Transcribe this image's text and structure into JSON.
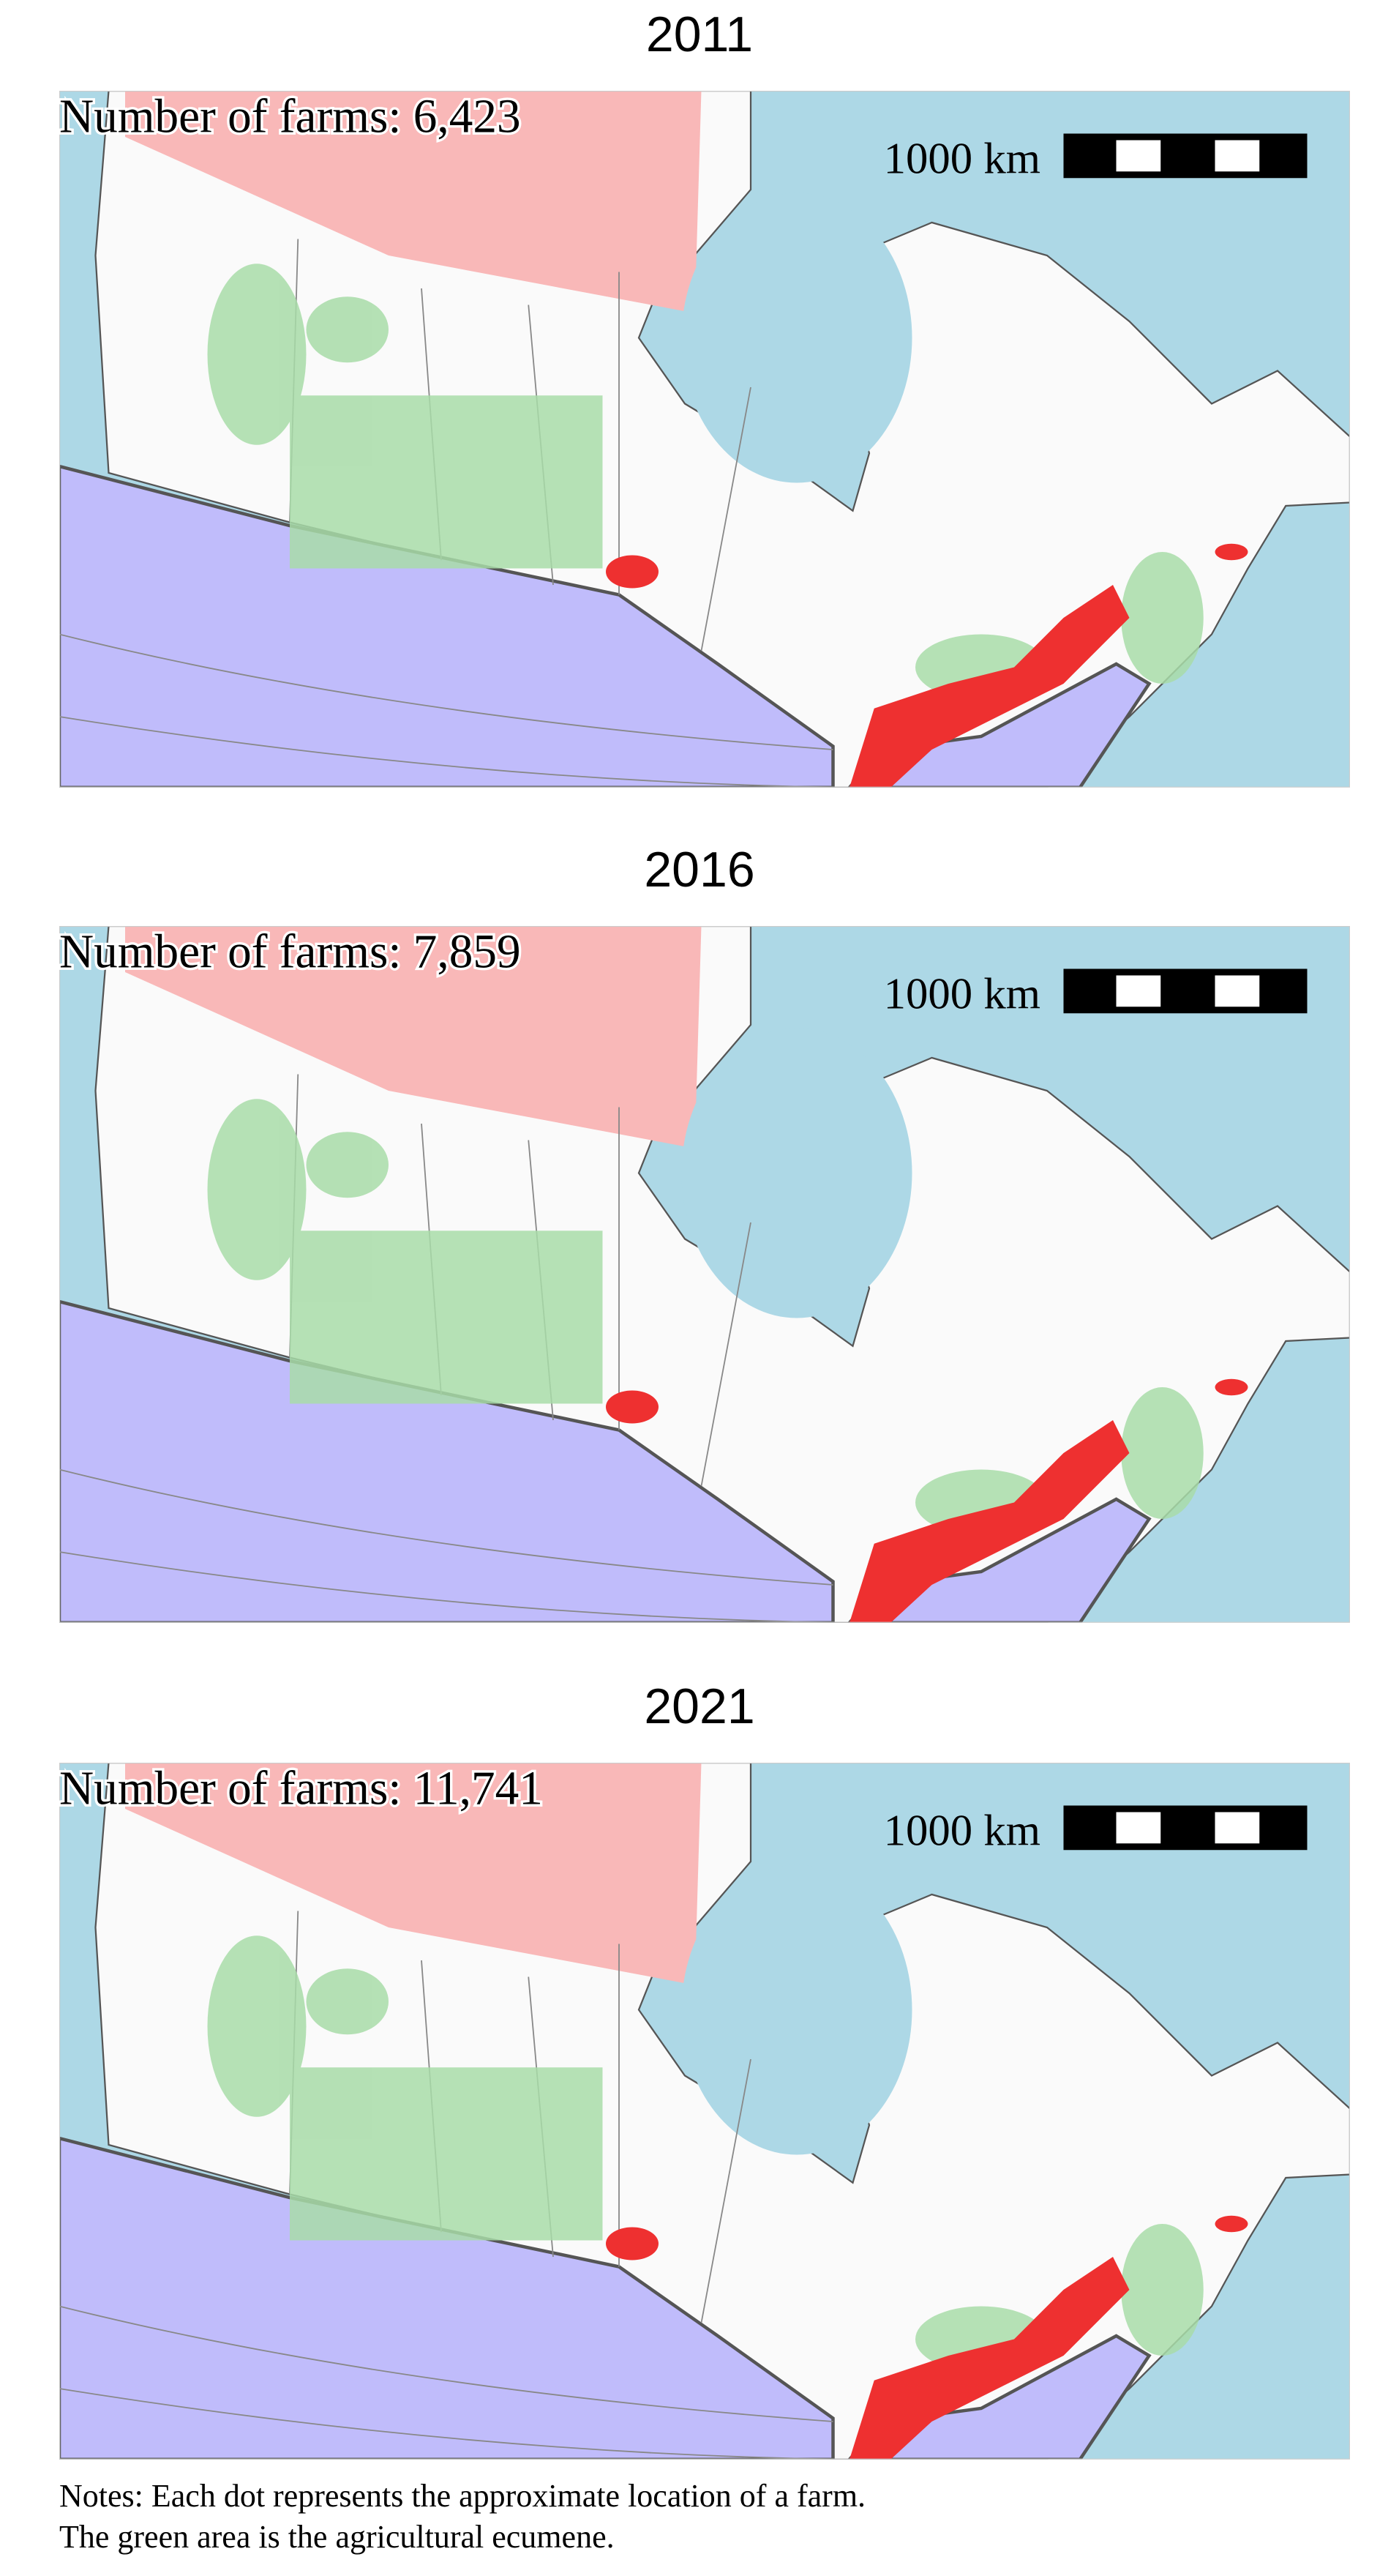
{
  "panels": [
    {
      "title": "2011",
      "farms_label": "Number of farms: 6,423"
    },
    {
      "title": "2016",
      "farms_label": "Number of farms: 7,859"
    },
    {
      "title": "2021",
      "farms_label": "Number of farms: 11,741"
    }
  ],
  "scale_bar": "1000 km",
  "notes": [
    "Notes: Each dot represents the approximate location of a farm.",
    "The green area is the agricultural ecumene."
  ]
}
